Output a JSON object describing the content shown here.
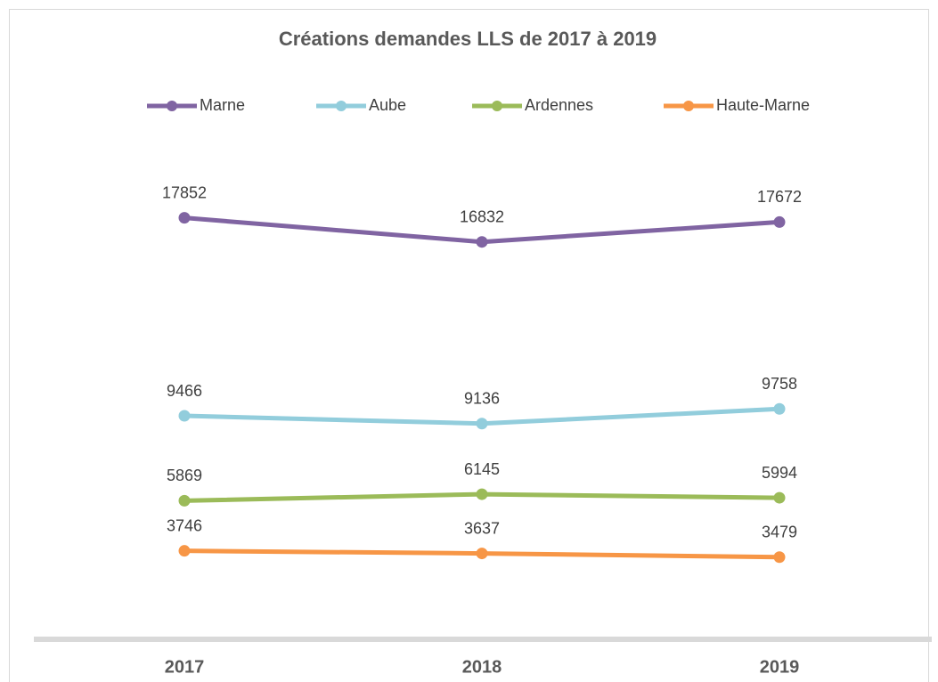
{
  "chart_data": {
    "type": "line",
    "title": "Créations demandes LLS de 2017 à 2019",
    "categories": [
      "2017",
      "2018",
      "2019"
    ],
    "series": [
      {
        "name": "Marne",
        "color": "#8064a2",
        "values": [
          17852,
          16832,
          17672
        ]
      },
      {
        "name": "Aube",
        "color": "#92cddc",
        "values": [
          9466,
          9136,
          9758
        ]
      },
      {
        "name": "Ardennes",
        "color": "#9bbb59",
        "values": [
          5869,
          6145,
          5994
        ]
      },
      {
        "name": "Haute-Marne",
        "color": "#f79646",
        "values": [
          3746,
          3637,
          3479
        ]
      }
    ],
    "ylim": [
      0,
      20000
    ],
    "legend": "top",
    "grid": false
  }
}
